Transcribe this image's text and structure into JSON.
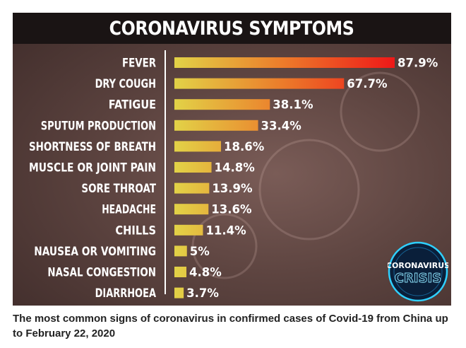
{
  "colors": {
    "bar_low": "#e2d247",
    "bar_high": "#ee1818",
    "label": "#ffffff",
    "title_band": "#1a1414"
  },
  "badge": {
    "line1": "CORONAVIRUS",
    "line2": "CRISIS"
  },
  "caption": "The most common signs of coronavirus in confirmed cases of Covid-19 from China up to February 22, 2020",
  "chart_data": {
    "type": "bar",
    "orientation": "horizontal",
    "title": "CORONAVIRUS SYMPTOMS",
    "xlabel": "",
    "ylabel": "",
    "xlim": [
      0,
      100
    ],
    "grid": false,
    "legend": "none",
    "categories": [
      "FEVER",
      "DRY COUGH",
      "FATIGUE",
      "SPUTUM PRODUCTION",
      "SHORTNESS OF BREATH",
      "MUSCLE OR JOINT PAIN",
      "SORE THROAT",
      "HEADACHE",
      "CHILLS",
      "NAUSEA OR VOMITING",
      "NASAL CONGESTION",
      "DIARRHOEA"
    ],
    "values": [
      87.9,
      67.7,
      38.1,
      33.4,
      18.6,
      14.8,
      13.9,
      13.6,
      11.4,
      5,
      4.8,
      3.7
    ],
    "value_labels": [
      "87.9%",
      "67.7%",
      "38.1%",
      "33.4%",
      "18.6%",
      "14.8%",
      "13.9%",
      "13.6%",
      "11.4%",
      "5%",
      "4.8%",
      "3.7%"
    ]
  }
}
